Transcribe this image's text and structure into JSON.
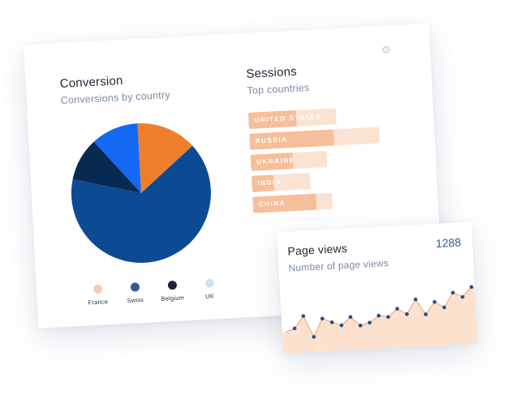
{
  "conversion": {
    "title": "Conversion",
    "subtitle": "Conversions by country"
  },
  "sessions": {
    "title": "Sessions",
    "subtitle": "Top countries",
    "settings_icon": "gear-icon",
    "bars": [
      {
        "label": "UNITED STATES",
        "fill": 0.55,
        "track": 1.0
      },
      {
        "label": "RUSSIA",
        "fill": 0.65,
        "track": 1.0
      },
      {
        "label": "UKRAINE",
        "fill": 0.55,
        "track": 1.0
      },
      {
        "label": "INDIA",
        "fill": 0.38,
        "track": 1.0
      },
      {
        "label": "CHINA",
        "fill": 0.8,
        "track": 1.0
      }
    ]
  },
  "chart_data": [
    {
      "type": "pie",
      "title": "Conversion",
      "subtitle": "Conversions by country",
      "categories": [
        "France",
        "Swiss",
        "Belgium",
        "UK"
      ],
      "values": [
        14,
        65,
        10,
        11
      ],
      "colors": [
        "#f07f2c",
        "#0d4a94",
        "#062a52",
        "#1468f2"
      ],
      "legend_colors": [
        "#f8cbb0",
        "#2d5b93",
        "#1f2633",
        "#cfe0fb"
      ],
      "legend": "bottom"
    },
    {
      "type": "area",
      "title": "Page views",
      "subtitle": "Number of page views",
      "total": "1288",
      "values": [
        22,
        28,
        48,
        12,
        42,
        35,
        29,
        42,
        27,
        31,
        42,
        39,
        52,
        42,
        66,
        40,
        60,
        50,
        74,
        66,
        82
      ]
    }
  ]
}
